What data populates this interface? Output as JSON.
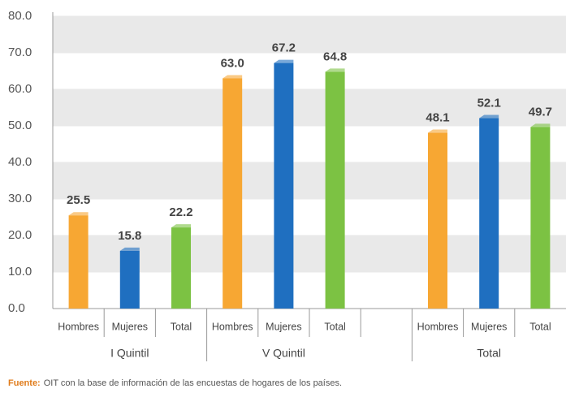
{
  "chart_data": {
    "type": "bar",
    "groups": [
      {
        "name": "I Quintil",
        "categories": [
          "Hombres",
          "Mujeres",
          "Total"
        ],
        "values": [
          25.5,
          15.8,
          22.2
        ],
        "value_labels": [
          "25.5",
          "15.8",
          "22.2"
        ]
      },
      {
        "name": "V Quintil",
        "categories": [
          "Hombres",
          "Mujeres",
          "Total"
        ],
        "values": [
          63.0,
          67.2,
          64.8
        ],
        "value_labels": [
          "63.0",
          "67.2",
          "64.8"
        ]
      },
      {
        "name": "Total",
        "categories": [
          "Hombres",
          "Mujeres",
          "Total"
        ],
        "values": [
          48.1,
          52.1,
          49.7
        ],
        "value_labels": [
          "48.1",
          "52.1",
          "49.7"
        ]
      }
    ],
    "colors": [
      "#f7a733",
      "#1f6fc0",
      "#7cc243"
    ],
    "ylim": [
      0,
      80
    ],
    "yticks": [
      {
        "value": 0,
        "label": "0.0"
      },
      {
        "value": 10,
        "label": "10.0"
      },
      {
        "value": 20,
        "label": "20.0"
      },
      {
        "value": 30,
        "label": "30.0"
      },
      {
        "value": 40,
        "label": "40.0"
      },
      {
        "value": 50,
        "label": "50.0"
      },
      {
        "value": 60,
        "label": "60.0"
      },
      {
        "value": 70,
        "label": "70.0"
      },
      {
        "value": 80,
        "label": "80.0"
      }
    ],
    "source_label": "Fuente:",
    "source": "OIT con la base de información de las encuestas de hogares de los países."
  }
}
